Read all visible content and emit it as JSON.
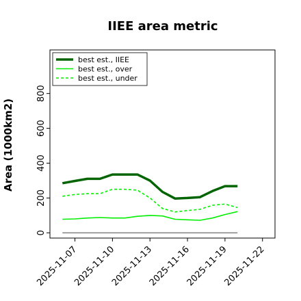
{
  "chart_data": {
    "type": "line",
    "title": "IIEE area metric",
    "xlabel": "",
    "ylabel": "Area (1000km2)",
    "x": [
      "2025-11-06",
      "2025-11-07",
      "2025-11-08",
      "2025-11-09",
      "2025-11-10",
      "2025-11-11",
      "2025-11-12",
      "2025-11-13",
      "2025-11-14",
      "2025-11-15",
      "2025-11-16",
      "2025-11-17",
      "2025-11-18",
      "2025-11-19",
      "2025-11-20"
    ],
    "xticks": [
      "2025-11-07",
      "2025-11-10",
      "2025-11-13",
      "2025-11-16",
      "2025-11-19",
      "2025-11-22"
    ],
    "xlim": [
      "2025-11-05",
      "2025-11-23"
    ],
    "yticks": [
      0,
      200,
      400,
      600,
      800
    ],
    "ylim": [
      -30,
      1050
    ],
    "legend_position": "upper-left",
    "grid": false,
    "series": [
      {
        "name": "best est., IIEE",
        "color": "#006400",
        "style": "solid-thick",
        "values": [
          285,
          298,
          310,
          310,
          335,
          335,
          335,
          300,
          235,
          197,
          200,
          205,
          240,
          268,
          268
        ]
      },
      {
        "name": "best est., over",
        "color": "#00ee00",
        "style": "solid",
        "values": [
          78,
          80,
          85,
          88,
          85,
          85,
          95,
          100,
          97,
          78,
          75,
          72,
          85,
          105,
          122
        ]
      },
      {
        "name": "best est., under",
        "color": "#00ee00",
        "style": "dashed",
        "values": [
          210,
          220,
          225,
          225,
          250,
          250,
          245,
          200,
          140,
          120,
          128,
          135,
          158,
          165,
          145
        ]
      }
    ],
    "reference_line": {
      "y": 0,
      "color": "#808080"
    }
  }
}
